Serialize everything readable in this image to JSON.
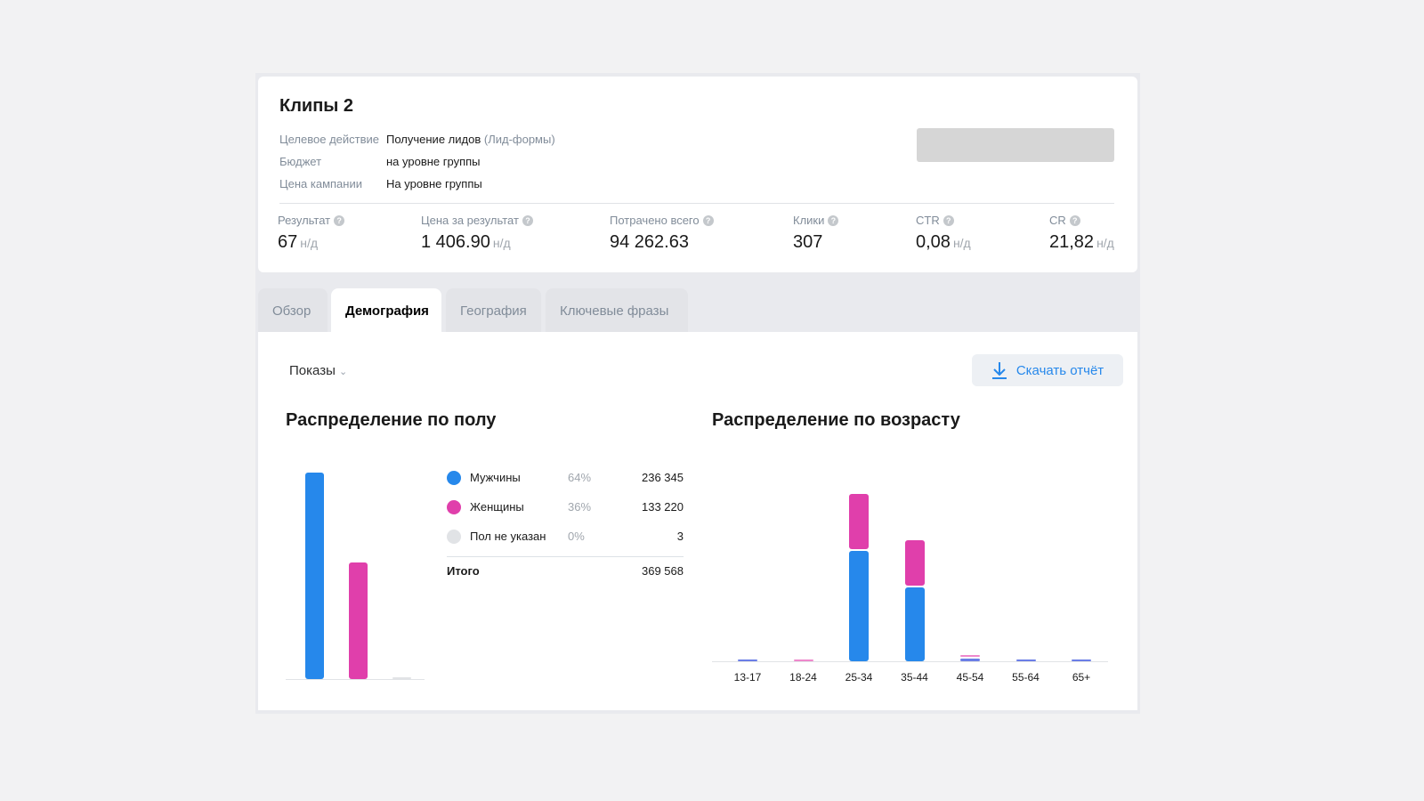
{
  "campaign": {
    "title": "Клипы 2",
    "info": [
      {
        "label": "Целевое действие",
        "value": "Получение лидов",
        "extra": "(Лид-формы)"
      },
      {
        "label": "Бюджет",
        "value": "на уровне группы"
      },
      {
        "label": "Цена кампании",
        "value": "На уровне группы"
      }
    ],
    "metrics": [
      {
        "label": "Результат",
        "value": "67",
        "suffix": "н/д"
      },
      {
        "label": "Цена за результат",
        "value": "1 406.90",
        "suffix": "н/д"
      },
      {
        "label": "Потрачено всего",
        "value": "94 262.63"
      },
      {
        "label": "Клики",
        "value": "307"
      },
      {
        "label": "CTR",
        "value": "0,08",
        "suffix": "н/д"
      },
      {
        "label": "CR",
        "value": "21,82",
        "suffix": "н/д"
      }
    ],
    "help_icon": "?"
  },
  "tabs": [
    {
      "label": "Обзор"
    },
    {
      "label": "Демография",
      "active": true
    },
    {
      "label": "География"
    },
    {
      "label": "Ключевые фразы"
    }
  ],
  "toolbar": {
    "metric_select": "Показы",
    "download": "Скачать отчёт"
  },
  "colors": {
    "male": "#2688eb",
    "female": "#e03fab",
    "unknown": "#e1e3e6",
    "bg_blue": "#6b7ee6"
  },
  "chart_data": [
    {
      "type": "bar",
      "title": "Распределение по полу",
      "categories": [
        "Мужчины",
        "Женщины",
        "Пол не указан"
      ],
      "values": [
        236345,
        133220,
        3
      ],
      "legend": [
        {
          "name": "Мужчины",
          "pct": "64%",
          "value": "236 345"
        },
        {
          "name": "Женщины",
          "pct": "36%",
          "value": "133 220"
        },
        {
          "name": "Пол не указан",
          "pct": "0%",
          "value": "3"
        }
      ],
      "total_label": "Итого",
      "total": "369 568"
    },
    {
      "type": "bar",
      "stacked": true,
      "title": "Распределение по возрасту",
      "categories": [
        "13-17",
        "18-24",
        "25-34",
        "35-44",
        "45-54",
        "55-64",
        "65+"
      ],
      "series": [
        {
          "values": [
            1500,
            0,
            126000,
            85000,
            3000,
            1500,
            1500
          ]
        },
        {
          "values": [
            0,
            1500,
            63000,
            52000,
            2000,
            0,
            0
          ]
        }
      ]
    }
  ]
}
